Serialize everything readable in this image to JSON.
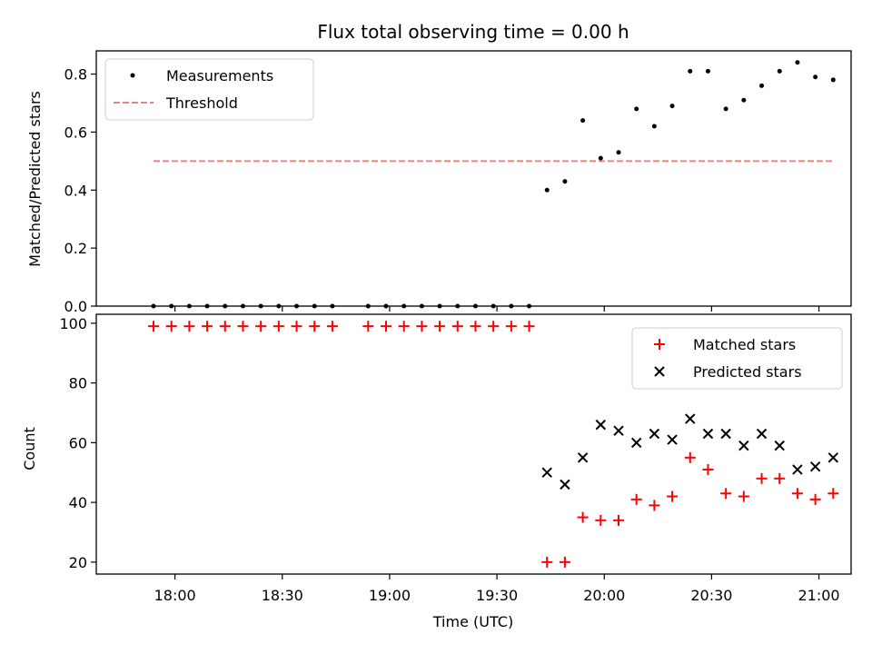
{
  "chart_data": [
    {
      "type": "scatter",
      "title": "Flux total observing time = 0.00 h",
      "ylabel": "Matched/Predicted stars",
      "xlabel": "",
      "ylim": [
        0,
        0.88
      ],
      "yticks": [
        "0.0",
        "0.2",
        "0.4",
        "0.6",
        "0.8"
      ],
      "legend_position": "top-left",
      "grid": false,
      "series": [
        {
          "name": "Measurements",
          "marker": "dot",
          "color": "#000000",
          "x": [
            "17:54",
            "17:59",
            "18:04",
            "18:09",
            "18:14",
            "18:19",
            "18:24",
            "18:29",
            "18:34",
            "18:39",
            "18:44",
            "18:54",
            "18:59",
            "19:04",
            "19:09",
            "19:14",
            "19:19",
            "19:24",
            "19:29",
            "19:34",
            "19:39",
            "19:44",
            "19:49",
            "19:54",
            "19:59",
            "20:04",
            "20:09",
            "20:14",
            "20:19",
            "20:24",
            "20:29",
            "20:34",
            "20:39",
            "20:44",
            "20:49",
            "20:54",
            "20:59",
            "21:04"
          ],
          "y": [
            0,
            0,
            0,
            0,
            0,
            0,
            0,
            0,
            0,
            0,
            0,
            0,
            0,
            0,
            0,
            0,
            0,
            0,
            0,
            0,
            0,
            0.4,
            0.43,
            0.64,
            0.51,
            0.53,
            0.68,
            0.62,
            0.69,
            0.81,
            0.81,
            0.68,
            0.71,
            0.76,
            0.81,
            0.84,
            0.79,
            0.78
          ]
        },
        {
          "name": "Threshold",
          "line": "dashed",
          "color": "#f08080",
          "x": [
            "17:54",
            "21:04"
          ],
          "y": [
            0.5,
            0.5
          ]
        }
      ]
    },
    {
      "type": "scatter",
      "xlabel": "Time (UTC)",
      "ylabel": "Count",
      "ylim": [
        16,
        103
      ],
      "yticks": [
        "20",
        "40",
        "60",
        "80",
        "100"
      ],
      "xticks": [
        "18:00",
        "18:30",
        "19:00",
        "19:30",
        "20:00",
        "20:30",
        "21:00"
      ],
      "xlim": [
        "17:38",
        "21:09"
      ],
      "legend_position": "top-right",
      "grid": false,
      "series": [
        {
          "name": "Matched stars",
          "marker": "plus",
          "color": "#ff0000",
          "x": [
            "17:54",
            "17:59",
            "18:04",
            "18:09",
            "18:14",
            "18:19",
            "18:24",
            "18:29",
            "18:34",
            "18:39",
            "18:44",
            "18:54",
            "18:59",
            "19:04",
            "19:09",
            "19:14",
            "19:19",
            "19:24",
            "19:29",
            "19:34",
            "19:39",
            "19:44",
            "19:49",
            "19:54",
            "19:59",
            "20:04",
            "20:09",
            "20:14",
            "20:19",
            "20:24",
            "20:29",
            "20:34",
            "20:39",
            "20:44",
            "20:49",
            "20:54",
            "20:59",
            "21:04"
          ],
          "y": [
            99,
            99,
            99,
            99,
            99,
            99,
            99,
            99,
            99,
            99,
            99,
            99,
            99,
            99,
            99,
            99,
            99,
            99,
            99,
            99,
            99,
            20,
            20,
            35,
            34,
            34,
            41,
            39,
            42,
            55,
            51,
            43,
            42,
            48,
            48,
            43,
            41,
            43
          ]
        },
        {
          "name": "Predicted stars",
          "marker": "x",
          "color": "#000000",
          "x": [
            "19:44",
            "19:49",
            "19:54",
            "19:59",
            "20:04",
            "20:09",
            "20:14",
            "20:19",
            "20:24",
            "20:29",
            "20:34",
            "20:39",
            "20:44",
            "20:49",
            "20:54",
            "20:59",
            "21:04"
          ],
          "y": [
            50,
            46,
            55,
            66,
            64,
            60,
            63,
            61,
            68,
            63,
            63,
            59,
            63,
            59,
            51,
            52,
            55
          ]
        }
      ]
    }
  ]
}
